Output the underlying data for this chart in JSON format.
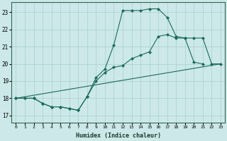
{
  "xlabel": "Humidex (Indice chaleur)",
  "bg_color": "#cce8e8",
  "line_color": "#1a6b5a",
  "grid_color": "#a8d0cc",
  "xlim": [
    -0.5,
    23.5
  ],
  "ylim": [
    16.6,
    23.6
  ],
  "xticks": [
    0,
    1,
    2,
    3,
    4,
    5,
    6,
    7,
    8,
    9,
    10,
    11,
    12,
    13,
    14,
    15,
    16,
    17,
    18,
    19,
    20,
    21,
    22,
    23
  ],
  "yticks": [
    17,
    18,
    19,
    20,
    21,
    22,
    23
  ],
  "curve1_x": [
    0,
    1,
    2,
    3,
    4,
    5,
    6,
    7,
    8,
    9,
    10,
    11,
    12,
    13,
    14,
    15,
    16,
    17,
    18,
    19,
    20,
    21
  ],
  "curve1_y": [
    18,
    18,
    18,
    17.7,
    17.5,
    17.5,
    17.4,
    17.3,
    18.1,
    19.2,
    19.7,
    21.1,
    23.1,
    23.1,
    23.1,
    23.2,
    23.2,
    22.7,
    21.6,
    21.5,
    20.1,
    20.0
  ],
  "curve2_x": [
    0,
    1,
    2,
    3,
    4,
    5,
    6,
    7,
    8,
    9,
    10,
    11,
    12,
    13,
    14,
    15,
    16,
    17,
    18,
    19,
    20,
    21,
    22,
    23
  ],
  "curve2_y": [
    18,
    18,
    18,
    17.7,
    17.5,
    17.5,
    17.4,
    17.3,
    18.1,
    19.0,
    19.5,
    19.8,
    19.9,
    20.3,
    20.5,
    20.7,
    21.6,
    21.7,
    21.5,
    21.5,
    21.5,
    21.5,
    20.0,
    20.0
  ],
  "curve3_x": [
    0,
    23
  ],
  "curve3_y": [
    18,
    20.0
  ]
}
